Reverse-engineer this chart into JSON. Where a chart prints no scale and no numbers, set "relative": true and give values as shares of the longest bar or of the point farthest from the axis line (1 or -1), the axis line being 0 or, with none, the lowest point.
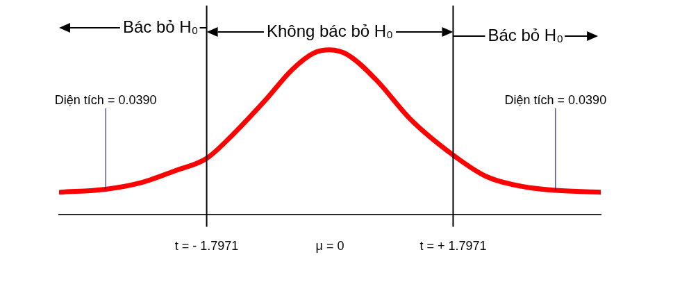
{
  "chart_data": {
    "type": "line",
    "relative": true,
    "x": [
      -3.93,
      -3.27,
      -2.77,
      -2.26,
      -1.7971,
      -1.45,
      -0.95,
      -0.55,
      -0.24,
      0,
      0.26,
      0.67,
      1.17,
      1.7971,
      2.28,
      2.79,
      3.29,
      3.95
    ],
    "series": [
      {
        "color": "#ff0000",
        "values": [
          0.134,
          0.152,
          0.19,
          0.264,
          0.34,
          0.47,
          0.69,
          0.88,
          0.98,
          1,
          0.97,
          0.82,
          0.58,
          0.36,
          0.23,
          0.17,
          0.145,
          0.134
        ]
      }
    ],
    "xlim": [
      -3.95,
      3.95
    ],
    "xticks": [
      {
        "value": -1.7971,
        "label": "t = - 1.7971"
      },
      {
        "value": 0,
        "label": "μ = 0"
      },
      {
        "value": 1.7971,
        "label": "t = + 1.7971"
      }
    ],
    "ref_lines": [
      {
        "axis": "x",
        "value": -1.7971,
        "color": "#000000"
      },
      {
        "axis": "x",
        "value": 1.7971,
        "color": "#000000"
      }
    ],
    "annotations": [
      {
        "text": "Diện tích = 0.0390",
        "x": -3.27,
        "y": 0.152
      },
      {
        "text": "Diện tích = 0.0390",
        "x": 3.29,
        "y": 0.145
      },
      "Bác bỏ H₀",
      "Không bác bỏ H₀",
      "Bác bỏ H₀"
    ],
    "grid": false,
    "legend": false,
    "marker": "none",
    "line_style": "solid"
  }
}
